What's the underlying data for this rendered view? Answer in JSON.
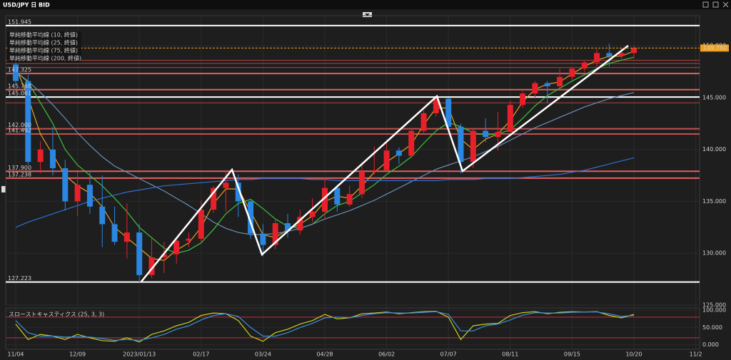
{
  "chart_data": [
    {
      "type": "candlestick",
      "title": "USD/JPY 日 BID",
      "categories": [
        "11/04",
        null,
        null,
        null,
        null,
        "12/09",
        null,
        null,
        null,
        null,
        "2023/01/13",
        null,
        null,
        null,
        null,
        "02/17",
        null,
        null,
        null,
        null,
        "03/24",
        null,
        null,
        null,
        null,
        "04/28",
        null,
        null,
        null,
        null,
        "06/02",
        null,
        null,
        null,
        null,
        "07/07",
        null,
        null,
        null,
        null,
        "08/11",
        null,
        null,
        null,
        null,
        "09/15",
        null,
        null,
        null,
        null,
        "10/20",
        null,
        null,
        null,
        null,
        "11/2"
      ],
      "open": [
        148.2,
        146.6,
        138.8,
        140.0,
        138.2,
        135.0,
        136.6,
        134.5,
        132.8,
        131.1,
        132.0,
        127.9,
        129.6,
        129.9,
        131.2,
        131.4,
        134.2,
        136.3,
        136.8,
        135.0,
        131.9,
        130.8,
        132.9,
        132.2,
        133.5,
        134.0,
        136.3,
        134.7,
        135.7,
        137.9,
        138.0,
        139.9,
        139.4,
        141.8,
        143.5,
        144.9,
        142.2,
        138.8,
        141.8,
        141.2,
        141.7,
        144.3,
        145.4,
        146.4,
        146.1,
        147.0,
        147.8,
        148.4,
        149.3,
        149.0,
        149.3,
        null,
        null,
        null,
        null,
        null
      ],
      "high": [
        148.9,
        147.2,
        140.8,
        142.2,
        139.0,
        137.8,
        138.0,
        137.5,
        134.5,
        134.8,
        132.8,
        131.6,
        131.1,
        131.4,
        132.0,
        135.1,
        136.5,
        137.9,
        137.6,
        135.1,
        132.8,
        133.3,
        133.8,
        134.2,
        135.3,
        137.3,
        136.6,
        136.5,
        138.7,
        140.3,
        140.9,
        140.2,
        142.0,
        143.8,
        145.1,
        145.0,
        142.5,
        142.0,
        143.0,
        143.6,
        144.7,
        145.6,
        146.6,
        146.6,
        147.8,
        147.9,
        148.5,
        149.7,
        150.2,
        149.8,
        150.0,
        null,
        null,
        null,
        null,
        null
      ],
      "low": [
        146.2,
        138.5,
        137.7,
        137.5,
        134.1,
        133.6,
        133.8,
        130.6,
        130.8,
        129.5,
        127.2,
        127.6,
        128.1,
        129.0,
        130.6,
        130.9,
        133.9,
        134.0,
        133.5,
        131.4,
        129.7,
        130.4,
        131.5,
        131.8,
        133.0,
        133.3,
        134.0,
        134.5,
        135.3,
        137.6,
        137.9,
        138.6,
        139.2,
        141.6,
        143.2,
        141.9,
        137.7,
        138.2,
        140.7,
        139.9,
        141.5,
        144.0,
        144.9,
        144.5,
        145.8,
        146.7,
        147.5,
        147.9,
        148.0,
        148.6,
        148.8,
        null,
        null,
        null,
        null,
        null
      ],
      "close": [
        146.6,
        138.8,
        140.0,
        138.2,
        135.0,
        136.6,
        134.5,
        132.8,
        131.1,
        132.0,
        127.9,
        129.6,
        129.9,
        131.2,
        131.4,
        134.2,
        136.3,
        136.8,
        135.0,
        131.9,
        130.8,
        132.9,
        132.2,
        133.5,
        134.0,
        136.3,
        134.7,
        135.7,
        137.9,
        138.0,
        139.9,
        139.4,
        141.8,
        143.5,
        144.9,
        142.2,
        138.8,
        141.8,
        141.2,
        141.7,
        144.3,
        145.4,
        146.4,
        146.1,
        147.0,
        147.8,
        148.4,
        149.3,
        149.0,
        149.3,
        149.8,
        null,
        null,
        null,
        null,
        null
      ],
      "series": [
        {
          "name": "単純移動平均線 (10, 終値)",
          "color": "#e8a020",
          "values": [
            148.0,
            145.0,
            141.5,
            139.5,
            137.5,
            136.5,
            135.8,
            134.5,
            132.5,
            131.5,
            130.5,
            129.5,
            129.3,
            130.3,
            131.0,
            132.5,
            134.8,
            136.2,
            136.2,
            134.0,
            131.8,
            131.5,
            132.3,
            132.8,
            133.6,
            135.0,
            135.5,
            135.3,
            136.5,
            137.8,
            138.8,
            139.6,
            140.5,
            142.4,
            144.0,
            144.0,
            141.0,
            140.0,
            141.0,
            141.5,
            142.8,
            144.6,
            145.8,
            146.3,
            146.5,
            147.3,
            148.0,
            148.6,
            149.0,
            149.0,
            149.5,
            null,
            null,
            null,
            null,
            null
          ]
        },
        {
          "name": "単純移動平均線 (25, 終値)",
          "color": "#3cc23c",
          "values": [
            147.5,
            146.5,
            144.5,
            142.5,
            140.0,
            138.5,
            137.5,
            136.5,
            135.3,
            134.0,
            132.5,
            131.5,
            130.5,
            130.0,
            130.3,
            131.0,
            132.3,
            133.8,
            134.8,
            135.2,
            134.3,
            133.3,
            132.6,
            132.4,
            132.8,
            133.8,
            134.6,
            135.0,
            135.8,
            136.6,
            137.6,
            138.4,
            139.3,
            140.6,
            141.8,
            142.6,
            142.2,
            141.6,
            141.4,
            141.5,
            141.9,
            143.0,
            144.2,
            145.2,
            145.9,
            146.6,
            147.2,
            147.8,
            148.3,
            148.6,
            148.9,
            null,
            null,
            null,
            null,
            null
          ]
        },
        {
          "name": "単純移動平均線 (75, 終値)",
          "color": "#6a8fb8",
          "values": [
            147.5,
            146.6,
            145.5,
            144.3,
            143.0,
            141.6,
            140.4,
            139.3,
            138.4,
            137.8,
            137.2,
            136.6,
            136.0,
            135.3,
            134.6,
            133.8,
            133.0,
            132.4,
            132.0,
            131.8,
            131.8,
            131.9,
            132.1,
            132.4,
            132.8,
            133.3,
            133.7,
            134.1,
            134.6,
            135.1,
            135.7,
            136.3,
            136.9,
            137.5,
            138.1,
            138.5,
            138.9,
            139.3,
            139.8,
            140.3,
            140.9,
            141.5,
            142.1,
            142.6,
            143.1,
            143.6,
            144.1,
            144.5,
            144.9,
            145.2,
            145.5,
            null,
            null,
            null,
            null,
            null
          ]
        },
        {
          "name": "単純移動平均線 (200, 終値)",
          "color": "#2f6fd0",
          "values": [
            132.5,
            133.0,
            133.4,
            133.8,
            134.2,
            134.6,
            135.0,
            135.3,
            135.6,
            135.9,
            136.1,
            136.3,
            136.5,
            136.6,
            136.7,
            136.8,
            136.9,
            137.0,
            137.1,
            137.1,
            137.2,
            137.2,
            137.2,
            137.2,
            137.1,
            137.1,
            137.0,
            137.0,
            137.0,
            137.0,
            137.0,
            137.0,
            137.0,
            137.0,
            137.0,
            137.1,
            137.1,
            137.1,
            137.2,
            137.2,
            137.2,
            137.3,
            137.4,
            137.5,
            137.6,
            137.8,
            138.0,
            138.3,
            138.6,
            138.9,
            139.2,
            null,
            null,
            null,
            null,
            null
          ]
        }
      ],
      "ylim": [
        125,
        152.9
      ],
      "yticks": [
        {
          "value": 125,
          "label": "125.000"
        },
        {
          "value": 130,
          "label": "130.000"
        },
        {
          "value": 135,
          "label": "135.000"
        },
        {
          "value": 140,
          "label": "140.000"
        },
        {
          "value": 145,
          "label": "145.000"
        },
        {
          "value": 150,
          "label": "150.000"
        }
      ],
      "levels": [
        {
          "value": 151.945,
          "label": "151.945",
          "color": "#ffffff"
        },
        {
          "value": 148.6,
          "color": "#b04444"
        },
        {
          "value": 148.3,
          "color": "#b04444"
        },
        {
          "value": 147.9,
          "color": "#b04444"
        },
        {
          "value": 147.325,
          "label": "147.325",
          "color": "#e06060"
        },
        {
          "value": 145.768,
          "label": "145.768",
          "color": "#e06060"
        },
        {
          "value": 145.061,
          "label": "145.061",
          "color": "#ffffff"
        },
        {
          "value": 144.5,
          "color": "#b04444"
        },
        {
          "value": 142.0,
          "label": "142.000",
          "color": "#c05050"
        },
        {
          "value": 141.492,
          "label": "141.492",
          "color": "#c05050"
        },
        {
          "value": 137.9,
          "label": "137.900",
          "color": "#e06060"
        },
        {
          "value": 137.238,
          "label": "137.238",
          "color": "#e06060"
        },
        {
          "value": 127.223,
          "label": "127.223",
          "color": "#ffffff"
        }
      ],
      "current_price": {
        "value": 149.78,
        "label": "149.780",
        "color": "#f0a020"
      },
      "up_color": "#e8202a",
      "down_color": "#2a86e0"
    },
    {
      "type": "line",
      "title": "スローストキャスティクス (25, 3, 3)",
      "series": [
        {
          "color": "#c8d020",
          "values": [
            60,
            15,
            30,
            25,
            15,
            30,
            20,
            12,
            10,
            20,
            8,
            30,
            40,
            55,
            65,
            85,
            92,
            90,
            70,
            25,
            10,
            35,
            45,
            60,
            70,
            88,
            75,
            78,
            90,
            92,
            95,
            90,
            93,
            96,
            97,
            80,
            15,
            55,
            60,
            62,
            85,
            93,
            96,
            90,
            94,
            96,
            95,
            96,
            85,
            78,
            88,
            null,
            null,
            null,
            null,
            null
          ]
        },
        {
          "color": "#3a8ee0",
          "values": [
            70,
            35,
            25,
            25,
            22,
            23,
            22,
            18,
            13,
            15,
            13,
            20,
            30,
            45,
            55,
            72,
            85,
            90,
            82,
            50,
            25,
            25,
            35,
            50,
            62,
            78,
            80,
            78,
            85,
            90,
            93,
            92,
            92,
            94,
            96,
            88,
            40,
            40,
            55,
            60,
            72,
            86,
            93,
            92,
            92,
            94,
            95,
            95,
            90,
            82,
            85,
            null,
            null,
            null,
            null,
            null
          ]
        }
      ],
      "ylim": [
        -13.3,
        106.7
      ],
      "yticks": [
        {
          "value": 0,
          "label": "0.000"
        },
        {
          "value": 50,
          "label": "50.000"
        },
        {
          "value": 100,
          "label": "100.000"
        }
      ],
      "levels": [
        {
          "value": 80,
          "color": "#c03040"
        },
        {
          "value": 20,
          "color": "#c03040"
        }
      ]
    }
  ]
}
